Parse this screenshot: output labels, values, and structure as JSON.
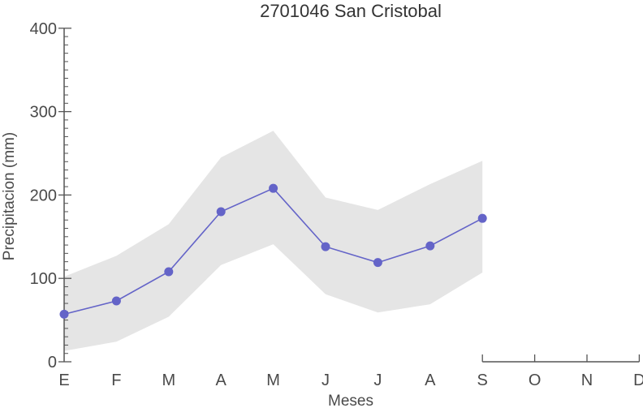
{
  "chart_data": {
    "type": "line",
    "title": "2701046 San Cristobal",
    "xlabel": "Meses",
    "ylabel": "Precipitacion (mm)",
    "categories": [
      "E",
      "F",
      "M",
      "A",
      "M",
      "J",
      "J",
      "A",
      "S",
      "O",
      "N",
      "D"
    ],
    "yticks": [
      0,
      100,
      200,
      300,
      400
    ],
    "ylim": [
      0,
      400
    ],
    "grid": false,
    "series": [
      {
        "values": [
          57,
          73,
          108,
          180,
          208,
          138,
          119,
          139,
          172,
          null,
          null,
          null
        ],
        "color": "#6464c8"
      }
    ],
    "band": {
      "upper": [
        102,
        127,
        165,
        245,
        277,
        197,
        182,
        213,
        241
      ],
      "lower": [
        13,
        24,
        54,
        116,
        141,
        81,
        59,
        69,
        107
      ],
      "color": "#e5e5e5"
    }
  }
}
